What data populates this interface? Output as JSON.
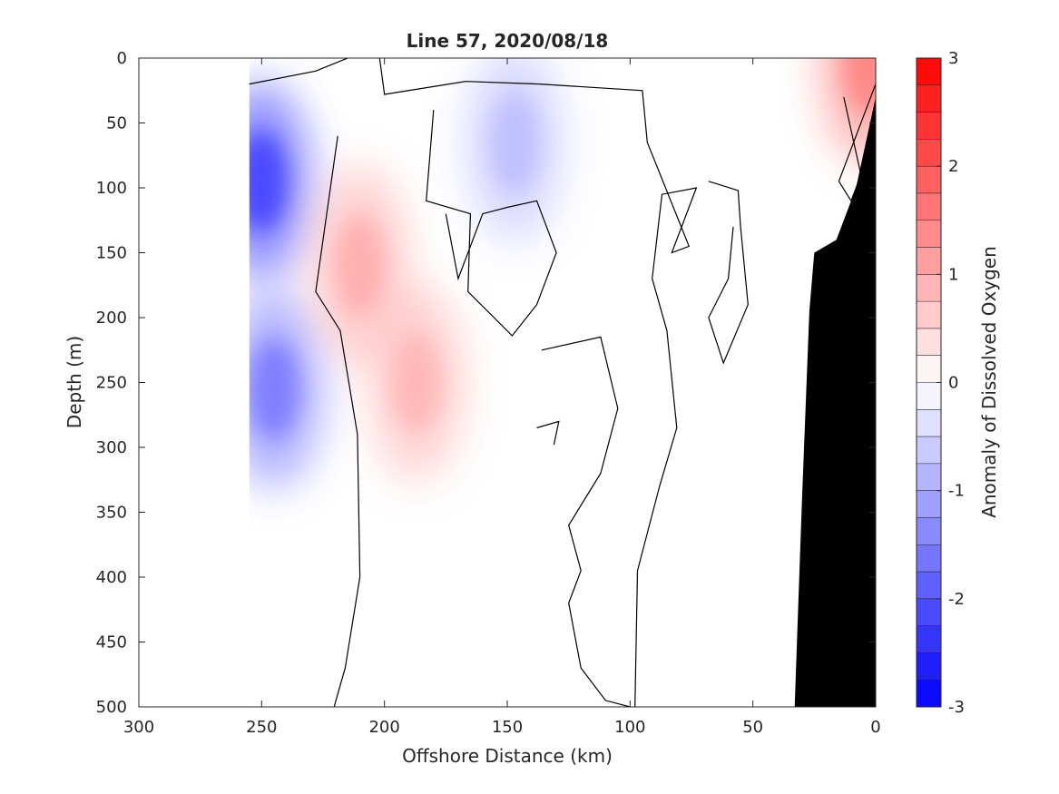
{
  "chart_data": {
    "type": "contour",
    "title": "Line 57, 2020/08/18",
    "xlabel": "Offshore Distance (km)",
    "ylabel": "Depth (m)",
    "colorbar_label": "Anomaly of Dissolved Oxygen",
    "xlim": [
      300,
      0
    ],
    "ylim": [
      500,
      0
    ],
    "x_reversed": true,
    "y_reversed": true,
    "x_ticks": [
      300,
      250,
      200,
      150,
      100,
      50,
      0
    ],
    "y_ticks": [
      0,
      50,
      100,
      150,
      200,
      250,
      300,
      350,
      400,
      450,
      500
    ],
    "colorbar_range": [
      -3,
      3
    ],
    "colorbar_ticks": [
      -3,
      -2,
      -1,
      0,
      1,
      2,
      3
    ],
    "colorbar_levels": 24,
    "colormap": {
      "negative": "#0000ff",
      "zero": "#ffffff",
      "positive": "#ff0000"
    },
    "data_extent_x": [
      0,
      255
    ],
    "features": [
      {
        "name": "min-deep",
        "x": 250,
        "depth": 95,
        "anomaly": -2.3
      },
      {
        "name": "min-mid",
        "x": 245,
        "depth": 255,
        "anomaly": -1.6
      },
      {
        "name": "min-upper",
        "x": 147,
        "depth": 65,
        "anomaly": -0.8
      },
      {
        "name": "max-deep",
        "x": 187,
        "depth": 250,
        "anomaly": 0.9
      },
      {
        "name": "max-upper",
        "x": 210,
        "depth": 160,
        "anomaly": 1.0
      },
      {
        "name": "max-surface",
        "x": 3,
        "depth": 5,
        "anomaly": 1.5
      }
    ],
    "zero_contours": [
      [
        [
          255,
          20
        ],
        [
          228,
          10
        ],
        [
          215,
          0
        ]
      ],
      [
        [
          219,
          60
        ],
        [
          228,
          180
        ],
        [
          218,
          210
        ],
        [
          211,
          290
        ],
        [
          210,
          400
        ],
        [
          216,
          470
        ],
        [
          222,
          510
        ]
      ],
      [
        [
          202,
          0
        ],
        [
          200,
          28
        ],
        [
          167,
          18
        ],
        [
          137,
          20
        ],
        [
          95,
          25
        ],
        [
          93,
          65
        ],
        [
          76,
          145
        ],
        [
          83,
          150
        ],
        [
          73,
          100
        ],
        [
          87,
          105
        ],
        [
          91,
          170
        ],
        [
          85,
          210
        ],
        [
          81,
          285
        ],
        [
          88,
          330
        ],
        [
          97,
          395
        ],
        [
          98,
          500
        ]
      ],
      [
        [
          180,
          40
        ],
        [
          183,
          110
        ],
        [
          165,
          120
        ],
        [
          166,
          180
        ],
        [
          148,
          214
        ],
        [
          138,
          190
        ],
        [
          130,
          150
        ],
        [
          138,
          110
        ],
        [
          150,
          115
        ],
        [
          160,
          120
        ],
        [
          170,
          170
        ],
        [
          175,
          120
        ]
      ],
      [
        [
          136,
          225
        ],
        [
          112,
          215
        ],
        [
          105,
          270
        ],
        [
          112,
          320
        ],
        [
          125,
          360
        ],
        [
          120,
          395
        ],
        [
          125,
          420
        ],
        [
          120,
          470
        ],
        [
          110,
          495
        ],
        [
          100,
          500
        ]
      ],
      [
        [
          138,
          285
        ],
        [
          129,
          280
        ],
        [
          131,
          298
        ]
      ],
      [
        [
          68,
          95
        ],
        [
          56,
          102
        ],
        [
          55,
          130
        ],
        [
          52,
          190
        ],
        [
          62,
          235
        ],
        [
          68,
          200
        ],
        [
          60,
          170
        ],
        [
          58,
          130
        ]
      ],
      [
        [
          13,
          30
        ],
        [
          6,
          90
        ],
        [
          10,
          110
        ],
        [
          15,
          95
        ],
        [
          0,
          20
        ]
      ]
    ],
    "bottom_profile": [
      [
        0,
        30
      ],
      [
        8,
        100
      ],
      [
        16,
        140
      ],
      [
        25,
        150
      ],
      [
        27,
        195
      ],
      [
        30,
        340
      ],
      [
        33,
        500
      ]
    ]
  }
}
